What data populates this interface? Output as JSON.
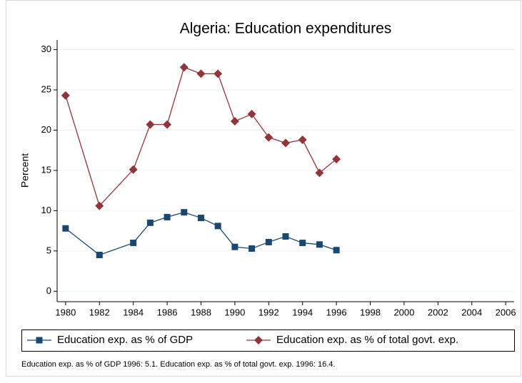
{
  "chart_data": {
    "type": "line",
    "title": "Algeria: Education expenditures",
    "y_label": "Percent",
    "x": [
      1980,
      1982,
      1984,
      1985,
      1986,
      1987,
      1988,
      1989,
      1990,
      1991,
      1992,
      1993,
      1994,
      1995,
      1996
    ],
    "series": [
      {
        "name": "Education exp. as % of GDP",
        "color": "#1a476f",
        "marker": "square",
        "values": [
          7.8,
          4.5,
          6.0,
          8.5,
          9.2,
          9.8,
          9.1,
          8.1,
          5.5,
          5.3,
          6.1,
          6.8,
          6.0,
          5.8,
          5.1
        ]
      },
      {
        "name": "Education exp. as % of total govt. exp.",
        "color": "#90353b",
        "marker": "diamond",
        "values": [
          24.3,
          10.6,
          15.1,
          20.7,
          20.7,
          27.8,
          27.0,
          27.0,
          21.1,
          22.0,
          19.1,
          18.4,
          18.8,
          14.7,
          16.4
        ]
      }
    ],
    "xlim": [
      1979.5,
      2006.5
    ],
    "xticks": [
      1980,
      1982,
      1984,
      1986,
      1988,
      1990,
      1992,
      1994,
      1996,
      1998,
      2000,
      2002,
      2004,
      2006
    ],
    "ylim": [
      -1.3,
      31.2
    ],
    "yticks": [
      0,
      5,
      10,
      15,
      20,
      25,
      30
    ],
    "grid": true,
    "legend": "bottom",
    "note": "Education exp. as % of GDP 1996: 5.1. Education exp. as % of total govt. exp. 1996: 16.4."
  }
}
